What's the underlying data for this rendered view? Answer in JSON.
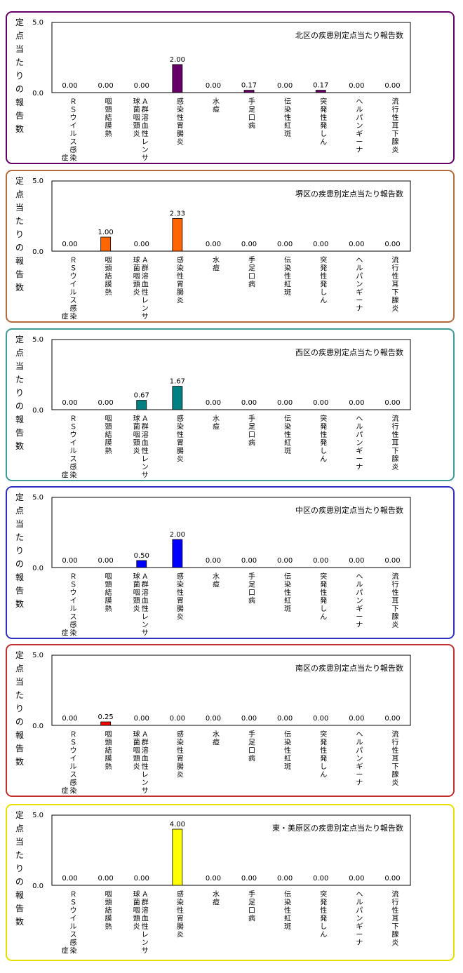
{
  "chart_data": [
    {
      "type": "bar",
      "title": "北区の疾患別定点当たり報告数",
      "ylabel": "定点当たりの報告数",
      "ylim": [
        0,
        5
      ],
      "yticks": [
        "0.0",
        "5.0"
      ],
      "categories": [
        "ＲＳウイルス感染症",
        "咽頭結膜熱",
        "Ａ群溶血性レンサ球菌咽頭炎",
        "感染性胃腸炎",
        "水痘",
        "手足口病",
        "伝染性紅斑",
        "突発性発しん",
        "ヘルパンギーナ",
        "流行性耳下腺炎"
      ],
      "values": [
        0,
        0,
        0,
        2.0,
        0,
        0.17,
        0,
        0.17,
        0,
        0
      ],
      "labels": [
        "0.00",
        "0.00",
        "0.00",
        "2.00",
        "0.00",
        "0.17",
        "0.00",
        "0.17",
        "0.00",
        "0.00"
      ],
      "bar_color": "#660066",
      "border_color": "#660066"
    },
    {
      "type": "bar",
      "title": "堺区の疾患別定点当たり報告数",
      "ylabel": "定点当たりの報告数",
      "ylim": [
        0,
        5
      ],
      "yticks": [
        "0.0",
        "5.0"
      ],
      "categories": [
        "ＲＳウイルス感染症",
        "咽頭結膜熱",
        "Ａ群溶血性レンサ球菌咽頭炎",
        "感染性胃腸炎",
        "水痘",
        "手足口病",
        "伝染性紅斑",
        "突発性発しん",
        "ヘルパンギーナ",
        "流行性耳下腺炎"
      ],
      "values": [
        0,
        1.0,
        0,
        2.33,
        0,
        0,
        0,
        0,
        0,
        0
      ],
      "labels": [
        "0.00",
        "1.00",
        "0.00",
        "2.33",
        "0.00",
        "0.00",
        "0.00",
        "0.00",
        "0.00",
        "0.00"
      ],
      "bar_color": "#ff6600",
      "border_color": "#b36b3f"
    },
    {
      "type": "bar",
      "title": "西区の疾患別定点当たり報告数",
      "ylabel": "定点当たりの報告数",
      "ylim": [
        0,
        5
      ],
      "yticks": [
        "0.0",
        "5.0"
      ],
      "categories": [
        "ＲＳウイルス感染症",
        "咽頭結膜熱",
        "Ａ群溶血性レンサ球菌咽頭炎",
        "感染性胃腸炎",
        "水痘",
        "手足口病",
        "伝染性紅斑",
        "突発性発しん",
        "ヘルパンギーナ",
        "流行性耳下腺炎"
      ],
      "values": [
        0,
        0,
        0.67,
        1.67,
        0,
        0,
        0,
        0,
        0,
        0
      ],
      "labels": [
        "0.00",
        "0.00",
        "0.67",
        "1.67",
        "0.00",
        "0.00",
        "0.00",
        "0.00",
        "0.00",
        "0.00"
      ],
      "bar_color": "#008080",
      "border_color": "#3f9a9a"
    },
    {
      "type": "bar",
      "title": "中区の疾患別定点当たり報告数",
      "ylabel": "定点当たりの報告数",
      "ylim": [
        0,
        5
      ],
      "yticks": [
        "0.0",
        "5.0"
      ],
      "categories": [
        "ＲＳウイルス感染症",
        "咽頭結膜熱",
        "Ａ群溶血性レンサ球菌咽頭炎",
        "感染性胃腸炎",
        "水痘",
        "手足口病",
        "伝染性紅斑",
        "突発性発しん",
        "ヘルパンギーナ",
        "流行性耳下腺炎"
      ],
      "values": [
        0,
        0,
        0.5,
        2.0,
        0,
        0,
        0,
        0,
        0,
        0
      ],
      "labels": [
        "0.00",
        "0.00",
        "0.50",
        "2.00",
        "0.00",
        "0.00",
        "0.00",
        "0.00",
        "0.00",
        "0.00"
      ],
      "bar_color": "#0000ff",
      "border_color": "#3030c0"
    },
    {
      "type": "bar",
      "title": "南区の疾患別定点当たり報告数",
      "ylabel": "定点当たりの報告数",
      "ylim": [
        0,
        5
      ],
      "yticks": [
        "0.0",
        "5.0"
      ],
      "categories": [
        "ＲＳウイルス感染症",
        "咽頭結膜熱",
        "Ａ群溶血性レンサ球菌咽頭炎",
        "感染性胃腸炎",
        "水痘",
        "手足口病",
        "伝染性紅斑",
        "突発性発しん",
        "ヘルパンギーナ",
        "流行性耳下腺炎"
      ],
      "values": [
        0,
        0.25,
        0,
        0,
        0,
        0,
        0,
        0,
        0,
        0
      ],
      "labels": [
        "0.00",
        "0.25",
        "0.00",
        "0.00",
        "0.00",
        "0.00",
        "0.00",
        "0.00",
        "0.00",
        "0.00"
      ],
      "bar_color": "#ff0000",
      "border_color": "#c03030"
    },
    {
      "type": "bar",
      "title": "東・美原区の疾患別定点当たり報告数",
      "ylabel": "定点当たりの報告数",
      "ylim": [
        0,
        5
      ],
      "yticks": [
        "0.0",
        "5.0"
      ],
      "categories": [
        "ＲＳウイルス感染症",
        "咽頭結膜熱",
        "Ａ群溶血性レンサ球菌咽頭炎",
        "感染性胃腸炎",
        "水痘",
        "手足口病",
        "伝染性紅斑",
        "突発性発しん",
        "ヘルパンギーナ",
        "流行性耳下腺炎"
      ],
      "values": [
        0,
        0,
        0,
        4.0,
        0,
        0,
        0,
        0,
        0,
        0
      ],
      "labels": [
        "0.00",
        "0.00",
        "0.00",
        "4.00",
        "0.00",
        "0.00",
        "0.00",
        "0.00",
        "0.00",
        "0.00"
      ],
      "bar_color": "#ffff00",
      "border_color": "#e8e000"
    }
  ]
}
